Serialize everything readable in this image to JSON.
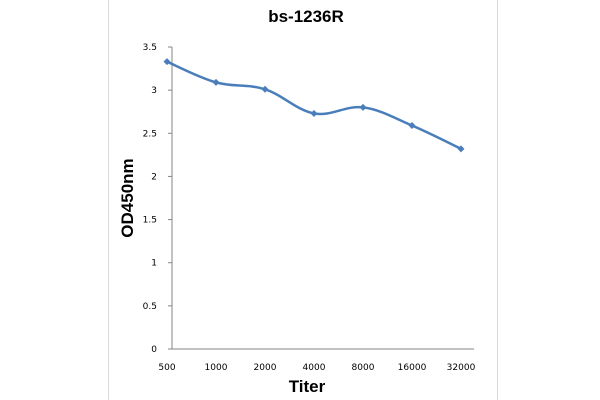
{
  "chart_data": {
    "type": "line",
    "title": "bs-1236R",
    "xlabel": "Titer",
    "ylabel": "OD450nm",
    "categories": [
      "500",
      "1000",
      "2000",
      "4000",
      "8000",
      "16000",
      "32000"
    ],
    "series": [
      {
        "name": "bs-1236R",
        "values": [
          3.33,
          3.09,
          3.01,
          2.73,
          2.8,
          2.59,
          2.32
        ],
        "color": "#4a7ebb"
      }
    ],
    "ylim": [
      0,
      3.5
    ],
    "yticks": [
      "0",
      "0.5",
      "1",
      "1.5",
      "2",
      "2.5",
      "3",
      "3.5"
    ],
    "ytick_values": [
      0,
      0.5,
      1,
      1.5,
      2,
      2.5,
      3,
      3.5
    ],
    "grid": false,
    "legend": "none"
  },
  "colors": {
    "axis": "#868686",
    "frame": "#d9d9d9",
    "line": "#4a7ebb"
  }
}
